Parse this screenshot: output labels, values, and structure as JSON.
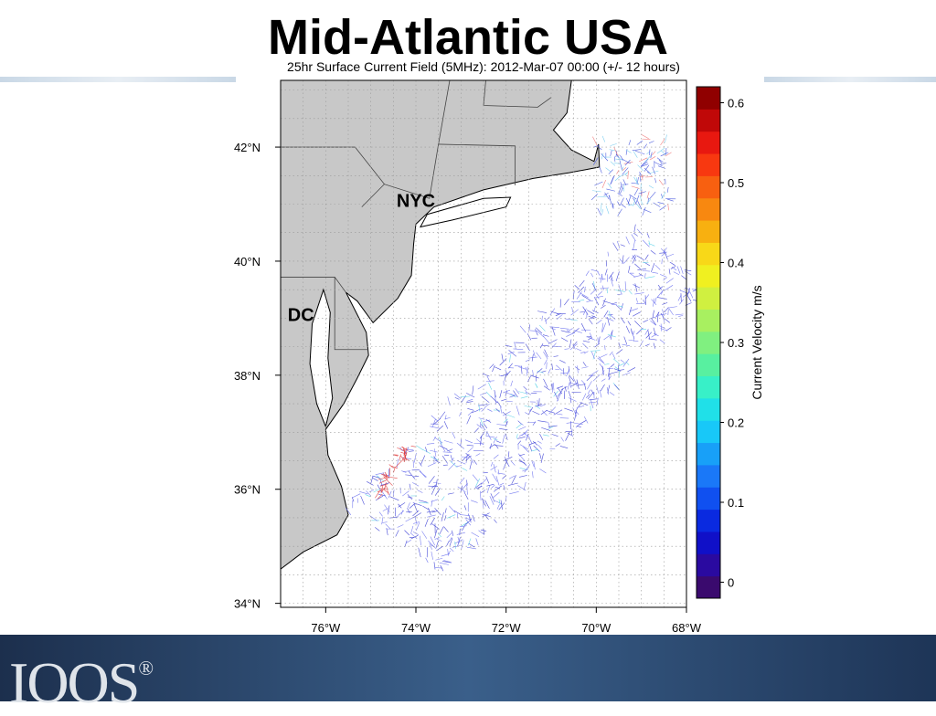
{
  "title": "Mid-Atlantic USA",
  "map": {
    "subtitle": "25hr Surface Current Field (5MHz): 2012-Mar-07 00:00 (+/- 12 hours)",
    "xlim": [
      -77,
      -68
    ],
    "ylim": [
      33.93,
      43.17
    ],
    "xticks": [
      {
        "value": -76,
        "label": "76°W"
      },
      {
        "value": -74,
        "label": "74°W"
      },
      {
        "value": -72,
        "label": "72°W"
      },
      {
        "value": -70,
        "label": "70°W"
      },
      {
        "value": -68,
        "label": "68°W"
      }
    ],
    "yticks": [
      {
        "value": 42,
        "label": "42°N"
      },
      {
        "value": 40,
        "label": "40°N"
      },
      {
        "value": 38,
        "label": "38°N"
      },
      {
        "value": 36,
        "label": "36°N"
      },
      {
        "value": 34,
        "label": "34°N"
      }
    ],
    "places": [
      {
        "label": "NYC",
        "lon": -74.0,
        "lat": 40.95
      },
      {
        "label": "DC",
        "lon": -76.55,
        "lat": 38.95
      }
    ]
  },
  "colorbar": {
    "title": "Current Velocity m/s",
    "lim": [
      -0.02,
      0.62
    ],
    "ticks": [
      0,
      0.1,
      0.2,
      0.3,
      0.4,
      0.5,
      0.6
    ]
  },
  "logo": {
    "text": "IOOS",
    "mark": "®"
  }
}
